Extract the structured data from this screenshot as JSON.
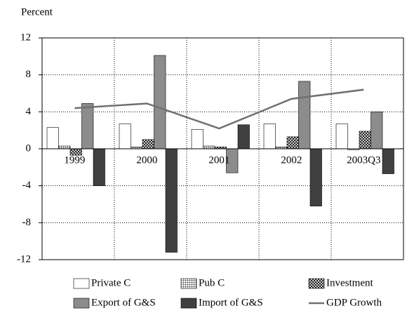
{
  "chart_data": {
    "type": "bar",
    "y_label": "Percent",
    "categories": [
      "1999",
      "2000",
      "2001",
      "2002",
      "2003Q3"
    ],
    "series": [
      {
        "name": "Private C",
        "type": "bar",
        "color": "#ffffff",
        "values": [
          2.3,
          2.7,
          2.1,
          2.7,
          2.7
        ]
      },
      {
        "name": "Pub C",
        "type": "bar",
        "color": "#ffffff",
        "pattern": "grid",
        "values": [
          0.3,
          0.2,
          0.3,
          0.2,
          -0.1
        ]
      },
      {
        "name": "Investment",
        "type": "bar",
        "color": "#ffffff",
        "pattern": "crosshatch",
        "values": [
          -0.7,
          1.0,
          0.2,
          1.3,
          1.9
        ]
      },
      {
        "name": "Export of G&S",
        "type": "bar",
        "color": "#8c8c8c",
        "values": [
          4.9,
          10.1,
          -2.6,
          7.3,
          4.0
        ]
      },
      {
        "name": "Import of G&S",
        "type": "bar",
        "color": "#404040",
        "values": [
          -4.0,
          -11.2,
          2.6,
          -6.2,
          -2.7
        ]
      },
      {
        "name": "GDP Growth",
        "type": "line",
        "color": "#707070",
        "values": [
          4.4,
          4.9,
          2.2,
          5.4,
          6.4
        ]
      }
    ],
    "ylim": [
      -12,
      12
    ],
    "yticks": [
      -12,
      -8,
      -4,
      0,
      4,
      8,
      12
    ],
    "grid": true,
    "legend": "bottom"
  }
}
